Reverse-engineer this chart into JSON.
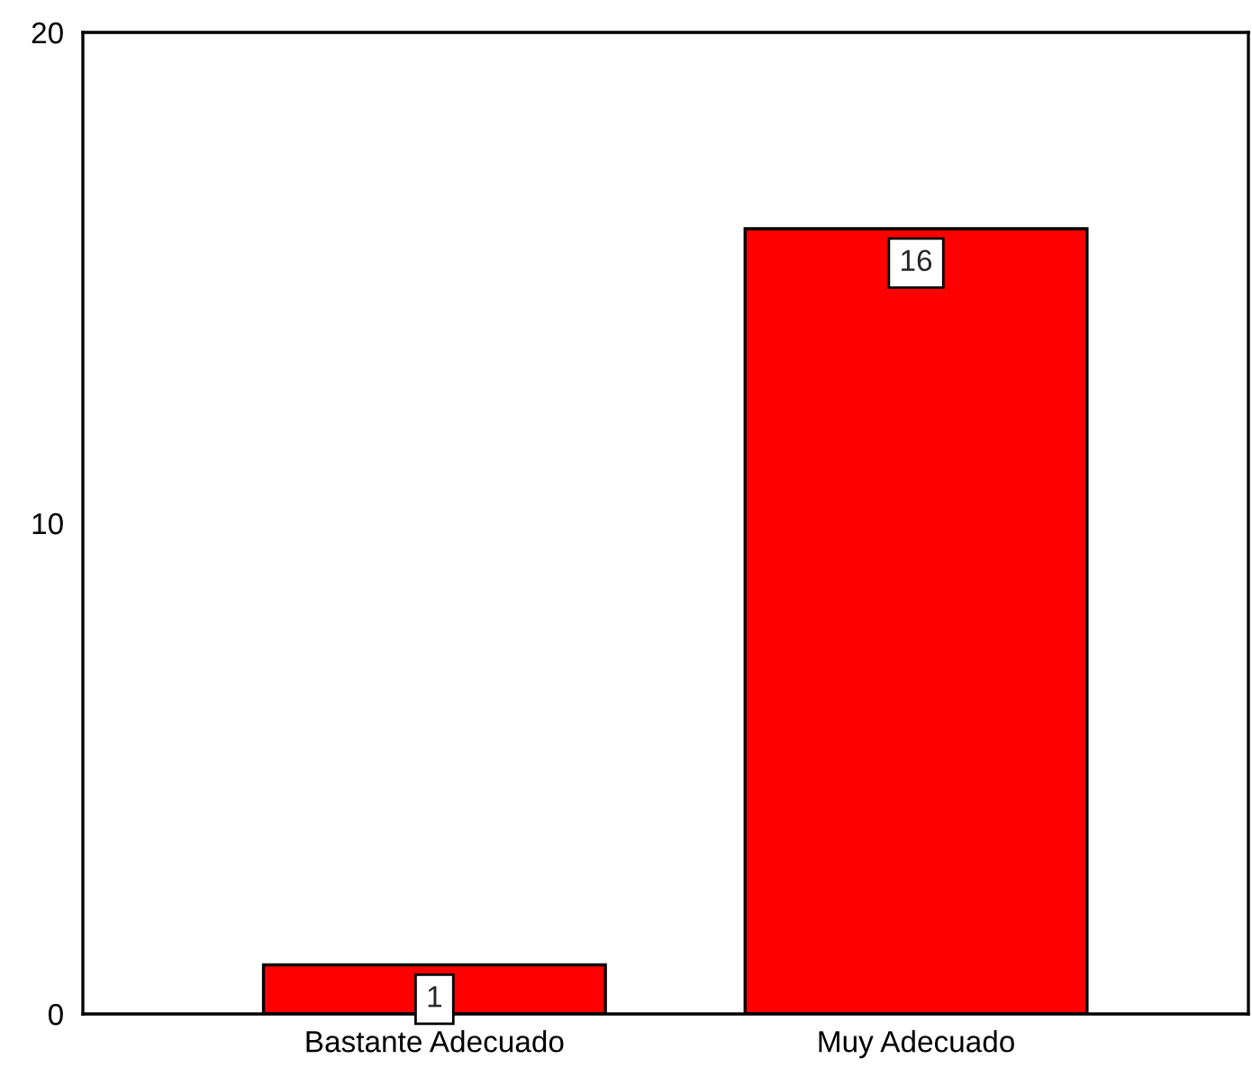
{
  "chart_data": {
    "type": "bar",
    "categories": [
      "Bastante Adecuado",
      "Muy Adecuado"
    ],
    "values": [
      1,
      16
    ],
    "color": "#ff0000",
    "ylim": [
      0,
      20
    ],
    "yticks": [
      0,
      10,
      20
    ],
    "data_labels": true,
    "grid": false
  }
}
